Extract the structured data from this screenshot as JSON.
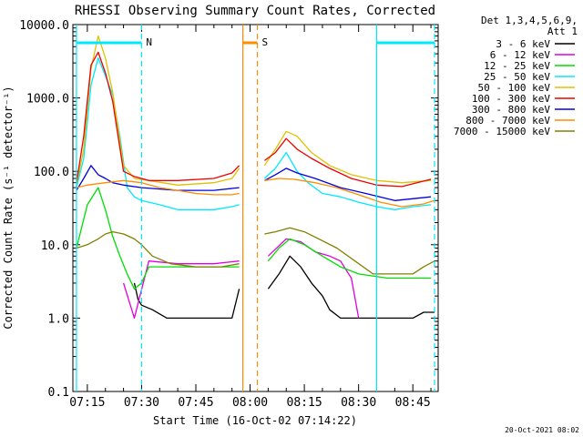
{
  "chart_data": {
    "type": "line",
    "title": "RHESSI Observing Summary Count Rates, Corrected",
    "xlabel": "Start Time (16-Oct-02 07:14:22)",
    "ylabel": "Corrected Count Rate (s⁻¹ detector⁻¹)",
    "y_scale": "log",
    "ylim": [
      0.1,
      10000
    ],
    "xlim": [
      "07:11",
      "08:52"
    ],
    "x_ticks": [
      "07:15",
      "07:30",
      "07:45",
      "08:00",
      "08:15",
      "08:30",
      "08:45"
    ],
    "y_ticks": [
      "0.1",
      "1.0",
      "10.0",
      "100.0",
      "1000.0",
      "10000.0"
    ],
    "legend_title": [
      "Det 1,3,4,5,6,9,",
      "Att 1"
    ],
    "legend_position": "right",
    "footer": "20-Oct-2021 08:02",
    "markers": [
      {
        "label": "N",
        "start": "07:12",
        "end": "07:30",
        "color": "#00e8ff"
      },
      {
        "label": "S",
        "start": "07:58",
        "end": "08:02",
        "color": "#ff8c00"
      },
      {
        "label": "",
        "start": "08:35",
        "end": "08:51",
        "color": "#00e8ff"
      }
    ],
    "series": [
      {
        "name": "3 - 6 keV",
        "color": "#000000",
        "points": [
          [
            "07:28",
            3
          ],
          [
            "07:29",
            1.8
          ],
          [
            "07:30",
            1.5
          ],
          [
            "07:33",
            1.3
          ],
          [
            "07:37",
            1
          ],
          [
            "07:45",
            1
          ],
          [
            "07:55",
            1
          ],
          [
            "07:57",
            2.5
          ],
          null,
          [
            "08:05",
            2.5
          ],
          [
            "08:08",
            4
          ],
          [
            "08:11",
            7
          ],
          [
            "08:14",
            5
          ],
          [
            "08:17",
            3
          ],
          [
            "08:20",
            2
          ],
          [
            "08:22",
            1.3
          ],
          [
            "08:25",
            1
          ],
          [
            "08:35",
            1
          ],
          [
            "08:45",
            1
          ],
          [
            "08:48",
            1.2
          ],
          [
            "08:51",
            1.2
          ]
        ]
      },
      {
        "name": "6 - 12 keV",
        "color": "#e000e0",
        "points": [
          [
            "07:25",
            3
          ],
          [
            "07:28",
            1
          ],
          [
            "07:32",
            6
          ],
          [
            "07:40",
            5.5
          ],
          [
            "07:50",
            5.5
          ],
          [
            "07:57",
            6
          ],
          null,
          [
            "08:05",
            7
          ],
          [
            "08:10",
            12
          ],
          [
            "08:14",
            11
          ],
          [
            "08:18",
            8
          ],
          [
            "08:22",
            7
          ],
          [
            "08:25",
            6
          ],
          [
            "08:28",
            3.5
          ],
          [
            "08:30",
            1
          ]
        ]
      },
      {
        "name": "12 - 25 keV",
        "color": "#00dd00",
        "points": [
          [
            "07:12",
            9
          ],
          [
            "07:15",
            35
          ],
          [
            "07:18",
            60
          ],
          [
            "07:20",
            30
          ],
          [
            "07:22",
            13
          ],
          [
            "07:24",
            7
          ],
          [
            "07:26",
            4
          ],
          [
            "07:28",
            2.5
          ],
          [
            "07:30",
            3
          ],
          [
            "07:32",
            5
          ],
          [
            "07:40",
            5
          ],
          [
            "07:50",
            5
          ],
          [
            "07:57",
            5
          ],
          null,
          [
            "08:05",
            6
          ],
          [
            "08:08",
            9
          ],
          [
            "08:11",
            12
          ],
          [
            "08:15",
            10
          ],
          [
            "08:20",
            7
          ],
          [
            "08:25",
            5
          ],
          [
            "08:30",
            4
          ],
          [
            "08:38",
            3.5
          ],
          [
            "08:45",
            3.5
          ],
          [
            "08:50",
            3.5
          ]
        ]
      },
      {
        "name": "25 - 50 keV",
        "color": "#00e8ff",
        "points": [
          [
            "07:12",
            60
          ],
          [
            "07:14",
            150
          ],
          [
            "07:16",
            1500
          ],
          [
            "07:18",
            3500
          ],
          [
            "07:20",
            2000
          ],
          [
            "07:22",
            1100
          ],
          [
            "07:24",
            300
          ],
          [
            "07:26",
            60
          ],
          [
            "07:28",
            45
          ],
          [
            "07:30",
            40
          ],
          [
            "07:35",
            35
          ],
          [
            "07:40",
            30
          ],
          [
            "07:50",
            30
          ],
          [
            "07:55",
            33
          ],
          [
            "07:57",
            35
          ],
          null,
          [
            "08:04",
            80
          ],
          [
            "08:07",
            110
          ],
          [
            "08:10",
            180
          ],
          [
            "08:13",
            100
          ],
          [
            "08:16",
            70
          ],
          [
            "08:20",
            50
          ],
          [
            "08:25",
            45
          ],
          [
            "08:30",
            38
          ],
          [
            "08:35",
            33
          ],
          [
            "08:40",
            30
          ],
          [
            "08:45",
            33
          ],
          [
            "08:50",
            35
          ]
        ]
      },
      {
        "name": "50 - 100 keV",
        "color": "#e0c000",
        "points": [
          [
            "07:12",
            65
          ],
          [
            "07:14",
            200
          ],
          [
            "07:16",
            2500
          ],
          [
            "07:18",
            7000
          ],
          [
            "07:20",
            3500
          ],
          [
            "07:22",
            1200
          ],
          [
            "07:25",
            120
          ],
          [
            "07:28",
            80
          ],
          [
            "07:32",
            75
          ],
          [
            "07:40",
            65
          ],
          [
            "07:50",
            70
          ],
          [
            "07:55",
            80
          ],
          [
            "07:57",
            110
          ],
          null,
          [
            "08:04",
            120
          ],
          [
            "08:07",
            200
          ],
          [
            "08:10",
            350
          ],
          [
            "08:13",
            300
          ],
          [
            "08:17",
            180
          ],
          [
            "08:22",
            120
          ],
          [
            "08:28",
            90
          ],
          [
            "08:35",
            75
          ],
          [
            "08:42",
            70
          ],
          [
            "08:50",
            75
          ]
        ]
      },
      {
        "name": "100 - 300 keV",
        "color": "#ee0000",
        "points": [
          [
            "07:12",
            70
          ],
          [
            "07:14",
            300
          ],
          [
            "07:16",
            2800
          ],
          [
            "07:18",
            4200
          ],
          [
            "07:20",
            2200
          ],
          [
            "07:22",
            900
          ],
          [
            "07:25",
            100
          ],
          [
            "07:28",
            85
          ],
          [
            "07:32",
            75
          ],
          [
            "07:40",
            75
          ],
          [
            "07:50",
            80
          ],
          [
            "07:55",
            95
          ],
          [
            "07:57",
            120
          ],
          null,
          [
            "08:04",
            140
          ],
          [
            "08:07",
            180
          ],
          [
            "08:10",
            280
          ],
          [
            "08:13",
            200
          ],
          [
            "08:17",
            150
          ],
          [
            "08:22",
            110
          ],
          [
            "08:28",
            80
          ],
          [
            "08:35",
            65
          ],
          [
            "08:42",
            62
          ],
          [
            "08:50",
            78
          ]
        ]
      },
      {
        "name": "300 - 800 keV",
        "color": "#0000dd",
        "points": [
          [
            "07:12",
            55
          ],
          [
            "07:14",
            80
          ],
          [
            "07:16",
            120
          ],
          [
            "07:18",
            90
          ],
          [
            "07:20",
            80
          ],
          [
            "07:22",
            70
          ],
          [
            "07:25",
            65
          ],
          [
            "07:30",
            60
          ],
          [
            "07:40",
            55
          ],
          [
            "07:50",
            55
          ],
          [
            "07:57",
            60
          ],
          null,
          [
            "08:04",
            75
          ],
          [
            "08:07",
            90
          ],
          [
            "08:10",
            110
          ],
          [
            "08:13",
            95
          ],
          [
            "08:18",
            80
          ],
          [
            "08:25",
            60
          ],
          [
            "08:32",
            50
          ],
          [
            "08:40",
            40
          ],
          [
            "08:50",
            45
          ]
        ]
      },
      {
        "name": "800 - 7000 keV",
        "color": "#ff8c00",
        "points": [
          [
            "07:12",
            60
          ],
          [
            "07:15",
            65
          ],
          [
            "07:20",
            70
          ],
          [
            "07:25",
            75
          ],
          [
            "07:30",
            70
          ],
          [
            "07:35",
            60
          ],
          [
            "07:40",
            55
          ],
          [
            "07:45",
            50
          ],
          [
            "07:50",
            48
          ],
          [
            "07:55",
            48
          ],
          [
            "07:57",
            50
          ],
          null,
          [
            "08:04",
            75
          ],
          [
            "08:08",
            80
          ],
          [
            "08:12",
            78
          ],
          [
            "08:18",
            70
          ],
          [
            "08:24",
            60
          ],
          [
            "08:30",
            48
          ],
          [
            "08:36",
            38
          ],
          [
            "08:42",
            33
          ],
          [
            "08:48",
            36
          ],
          [
            "08:51",
            40
          ]
        ]
      },
      {
        "name": "7000 - 15000 keV",
        "color": "#808000",
        "points": [
          [
            "07:12",
            9
          ],
          [
            "07:15",
            10
          ],
          [
            "07:18",
            12
          ],
          [
            "07:20",
            14
          ],
          [
            "07:22",
            15
          ],
          [
            "07:25",
            14
          ],
          [
            "07:28",
            12
          ],
          [
            "07:30",
            10
          ],
          [
            "07:33",
            7
          ],
          [
            "07:38",
            5.5
          ],
          [
            "07:45",
            5
          ],
          [
            "07:52",
            5
          ],
          [
            "07:57",
            5.5
          ],
          null,
          [
            "08:04",
            14
          ],
          [
            "08:07",
            15
          ],
          [
            "08:11",
            17
          ],
          [
            "08:15",
            15
          ],
          [
            "08:19",
            12
          ],
          [
            "08:24",
            9
          ],
          [
            "08:29",
            6
          ],
          [
            "08:34",
            4
          ],
          [
            "08:40",
            4
          ],
          [
            "08:45",
            4
          ],
          [
            "08:48",
            5
          ],
          [
            "08:51",
            6
          ]
        ]
      }
    ]
  }
}
